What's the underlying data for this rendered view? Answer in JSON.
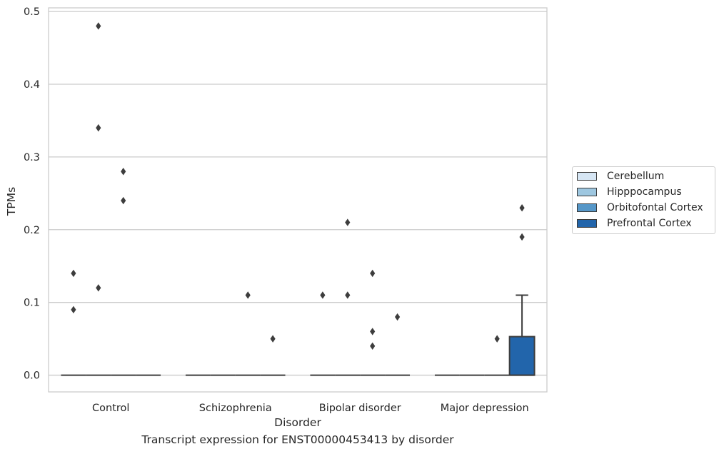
{
  "chart_data": {
    "type": "box",
    "xlabel": "Disorder",
    "ylabel": "TPMs",
    "caption": "Transcript expression for ENST00000453413 by disorder",
    "ylim": [
      -0.023,
      0.505
    ],
    "yticks": [
      0.0,
      0.1,
      0.2,
      0.3,
      0.4,
      0.5
    ],
    "ytick_labels": [
      "0.0",
      "0.1",
      "0.2",
      "0.3",
      "0.4",
      "0.5"
    ],
    "categories": [
      "Control",
      "Schizophrenia",
      "Bipolar disorder",
      "Major depression"
    ],
    "grid": "horizontal",
    "legend_position": "right",
    "series": [
      {
        "name": "Cerebellum",
        "color": "#d6e6f4"
      },
      {
        "name": "Hipppocampus",
        "color": "#9ec7e0"
      },
      {
        "name": "Orbitofontal Cortex",
        "color": "#5697c8"
      },
      {
        "name": "Prefrontal Cortex",
        "color": "#2265ab"
      }
    ],
    "boxes": [
      {
        "category": 0,
        "series": 0,
        "q1": 0,
        "median": 0,
        "q3": 0,
        "whisker_low": 0,
        "whisker_high": 0,
        "outliers": [
          0.09,
          0.14
        ]
      },
      {
        "category": 0,
        "series": 1,
        "q1": 0,
        "median": 0,
        "q3": 0,
        "whisker_low": 0,
        "whisker_high": 0,
        "outliers": [
          0.12,
          0.34,
          0.48
        ]
      },
      {
        "category": 0,
        "series": 2,
        "q1": 0,
        "median": 0,
        "q3": 0,
        "whisker_low": 0,
        "whisker_high": 0,
        "outliers": [
          0.24,
          0.28
        ]
      },
      {
        "category": 0,
        "series": 3,
        "q1": 0,
        "median": 0,
        "q3": 0,
        "whisker_low": 0,
        "whisker_high": 0,
        "outliers": []
      },
      {
        "category": 1,
        "series": 0,
        "q1": 0,
        "median": 0,
        "q3": 0,
        "whisker_low": 0,
        "whisker_high": 0,
        "outliers": []
      },
      {
        "category": 1,
        "series": 1,
        "q1": 0,
        "median": 0,
        "q3": 0,
        "whisker_low": 0,
        "whisker_high": 0,
        "outliers": []
      },
      {
        "category": 1,
        "series": 2,
        "q1": 0,
        "median": 0,
        "q3": 0,
        "whisker_low": 0,
        "whisker_high": 0,
        "outliers": [
          0.11
        ]
      },
      {
        "category": 1,
        "series": 3,
        "q1": 0,
        "median": 0,
        "q3": 0,
        "whisker_low": 0,
        "whisker_high": 0,
        "outliers": [
          0.05
        ]
      },
      {
        "category": 2,
        "series": 0,
        "q1": 0,
        "median": 0,
        "q3": 0,
        "whisker_low": 0,
        "whisker_high": 0,
        "outliers": [
          0.11
        ]
      },
      {
        "category": 2,
        "series": 1,
        "q1": 0,
        "median": 0,
        "q3": 0,
        "whisker_low": 0,
        "whisker_high": 0,
        "outliers": [
          0.11,
          0.21
        ]
      },
      {
        "category": 2,
        "series": 2,
        "q1": 0,
        "median": 0,
        "q3": 0,
        "whisker_low": 0,
        "whisker_high": 0,
        "outliers": [
          0.04,
          0.06,
          0.14
        ]
      },
      {
        "category": 2,
        "series": 3,
        "q1": 0,
        "median": 0,
        "q3": 0,
        "whisker_low": 0,
        "whisker_high": 0,
        "outliers": [
          0.08
        ]
      },
      {
        "category": 3,
        "series": 0,
        "q1": 0,
        "median": 0,
        "q3": 0,
        "whisker_low": 0,
        "whisker_high": 0,
        "outliers": []
      },
      {
        "category": 3,
        "series": 1,
        "q1": 0,
        "median": 0,
        "q3": 0,
        "whisker_low": 0,
        "whisker_high": 0,
        "outliers": []
      },
      {
        "category": 3,
        "series": 2,
        "q1": 0,
        "median": 0,
        "q3": 0,
        "whisker_low": 0,
        "whisker_high": 0,
        "outliers": [
          0.05
        ]
      },
      {
        "category": 3,
        "series": 3,
        "q1": 0,
        "median": 0,
        "q3": 0.053,
        "whisker_low": 0,
        "whisker_high": 0.11,
        "outliers": [
          0.19,
          0.23
        ]
      }
    ]
  }
}
